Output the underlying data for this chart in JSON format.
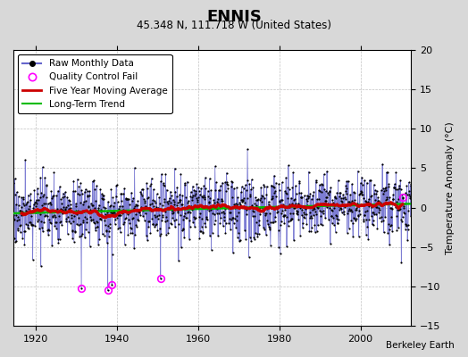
{
  "title": "ENNIS",
  "subtitle": "45.348 N, 111.718 W (United States)",
  "ylabel": "Temperature Anomaly (°C)",
  "attribution": "Berkeley Earth",
  "ylim": [
    -15,
    20
  ],
  "yticks": [
    -15,
    -10,
    -5,
    0,
    5,
    10,
    15,
    20
  ],
  "xlim": [
    1914.5,
    2012.5
  ],
  "xticks": [
    1920,
    1940,
    1960,
    1980,
    2000
  ],
  "start_year": 1914,
  "end_year": 2012,
  "seed": 17,
  "bg_color": "#d8d8d8",
  "plot_bg_color": "#ffffff",
  "raw_line_color": "#6666cc",
  "raw_dot_color": "#000000",
  "moving_avg_color": "#cc0000",
  "trend_color": "#00bb00",
  "qc_fail_color": "#ff00ff",
  "noise_std": 2.0,
  "trend_slope": 0.012,
  "trend_base": -0.1,
  "qc_fail_points": [
    {
      "year": 1931.25,
      "value": -10.2
    },
    {
      "year": 1937.75,
      "value": -10.5
    },
    {
      "year": 1938.75,
      "value": -9.8
    },
    {
      "year": 1950.75,
      "value": -9.0
    },
    {
      "year": 2010.5,
      "value": 1.3
    }
  ]
}
